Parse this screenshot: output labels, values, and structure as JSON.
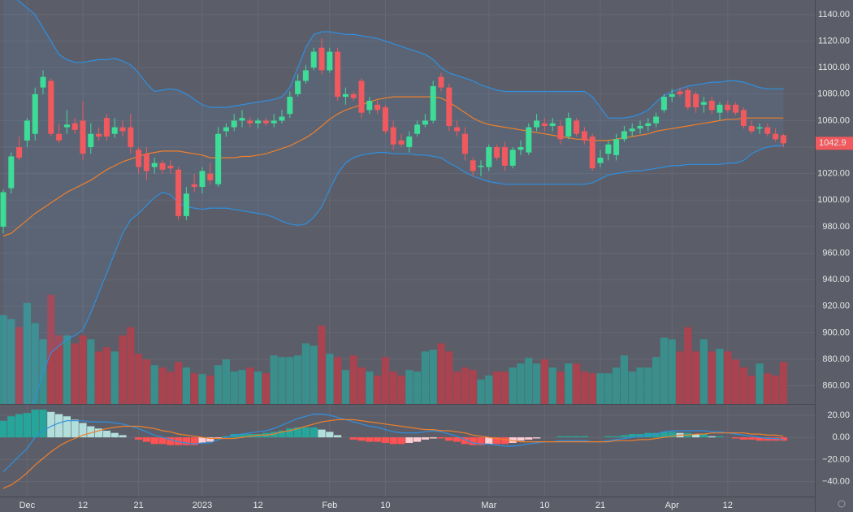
{
  "chart_data": {
    "type": "candlestick",
    "categories": [
      null,
      null,
      null,
      "Dec",
      null,
      null,
      null,
      null,
      null,
      null,
      "12",
      null,
      null,
      null,
      null,
      null,
      null,
      "21",
      null,
      null,
      null,
      null,
      null,
      null,
      null,
      "2023",
      null,
      null,
      null,
      null,
      null,
      null,
      "12",
      null,
      null,
      null,
      null,
      null,
      null,
      null,
      null,
      "Feb",
      null,
      null,
      null,
      null,
      null,
      null,
      "10",
      null,
      null,
      null,
      null,
      null,
      null,
      null,
      null,
      null,
      null,
      null,
      null,
      "Mar",
      null,
      null,
      null,
      null,
      null,
      null,
      "10",
      null,
      null,
      null,
      null,
      null,
      null,
      "21",
      null,
      null,
      null,
      null,
      null,
      null,
      null,
      null,
      "Apr",
      null,
      null,
      null,
      null,
      null,
      null,
      "12",
      null,
      null,
      null,
      null,
      null,
      null,
      null
    ],
    "open": [
      980,
      1009,
      1040,
      1045,
      1050,
      1085,
      1090,
      1050,
      1055,
      1058,
      1060,
      1040,
      1050,
      1062,
      1050,
      1055,
      1055,
      1038,
      1035,
      1025,
      1028,
      1026,
      1023,
      988,
      1012,
      1010,
      1020,
      1012,
      1052,
      1055,
      1060,
      1060,
      1058,
      1060,
      1058,
      1060,
      1065,
      1080,
      1090,
      1100,
      1115,
      1098,
      1112,
      1078,
      1080,
      1090,
      1068,
      1072,
      1070,
      1055,
      1045,
      1040,
      1050,
      1057,
      1060,
      1093,
      1085,
      1055,
      1050,
      1030,
      1025,
      1025,
      1040,
      1040,
      1026,
      1038,
      1036,
      1055,
      1058,
      1056,
      1056,
      1048,
      1060,
      1052,
      1048,
      1028,
      1035,
      1034,
      1046,
      1052,
      1054,
      1056,
      1058,
      1068,
      1078,
      1082,
      1083,
      1080,
      1072,
      1075,
      1066,
      1072,
      1072,
      1068,
      1056,
      1054,
      1055,
      1050,
      1049
    ],
    "high": [
      1008,
      1036,
      1048,
      1062,
      1085,
      1098,
      1092,
      1058,
      1068,
      1062,
      1075,
      1058,
      1055,
      1065,
      1062,
      1060,
      1065,
      1040,
      1040,
      1032,
      1030,
      1030,
      1025,
      1010,
      1020,
      1025,
      1028,
      1055,
      1058,
      1065,
      1068,
      1063,
      1062,
      1062,
      1065,
      1068,
      1082,
      1095,
      1102,
      1115,
      1122,
      1115,
      1115,
      1085,
      1082,
      1092,
      1078,
      1075,
      1072,
      1060,
      1050,
      1052,
      1060,
      1065,
      1090,
      1096,
      1088,
      1060,
      1055,
      1032,
      1030,
      1042,
      1042,
      1044,
      1040,
      1045,
      1058,
      1065,
      1062,
      1062,
      1060,
      1066,
      1062,
      1055,
      1050,
      1038,
      1045,
      1050,
      1056,
      1058,
      1060,
      1062,
      1066,
      1080,
      1084,
      1085,
      1085,
      1082,
      1078,
      1078,
      1074,
      1075,
      1074,
      1070,
      1060,
      1058,
      1058,
      1054,
      1050
    ],
    "low": [
      975,
      1005,
      1030,
      1040,
      1045,
      1080,
      1048,
      1043,
      1050,
      1050,
      1030,
      1035,
      1045,
      1045,
      1047,
      1048,
      1035,
      1020,
      1015,
      1020,
      1020,
      1020,
      985,
      985,
      1006,
      1005,
      1012,
      1010,
      1048,
      1052,
      1055,
      1055,
      1054,
      1056,
      1055,
      1058,
      1062,
      1078,
      1088,
      1098,
      1095,
      1096,
      1075,
      1072,
      1075,
      1062,
      1065,
      1065,
      1050,
      1038,
      1040,
      1036,
      1048,
      1055,
      1058,
      1082,
      1052,
      1048,
      1030,
      1018,
      1018,
      1022,
      1030,
      1022,
      1024,
      1034,
      1034,
      1052,
      1052,
      1052,
      1042,
      1046,
      1048,
      1042,
      1022,
      1025,
      1030,
      1030,
      1044,
      1048,
      1050,
      1052,
      1055,
      1066,
      1074,
      1078,
      1068,
      1066,
      1066,
      1065,
      1060,
      1066,
      1064,
      1054,
      1050,
      1050,
      1048,
      1044,
      1040
    ],
    "close": [
      1006,
      1033,
      1032,
      1060,
      1080,
      1093,
      1050,
      1045,
      1057,
      1053,
      1035,
      1050,
      1048,
      1048,
      1055,
      1052,
      1040,
      1025,
      1022,
      1028,
      1023,
      1024,
      988,
      1005,
      1010,
      1022,
      1015,
      1050,
      1055,
      1060,
      1062,
      1058,
      1060,
      1058,
      1060,
      1063,
      1078,
      1090,
      1098,
      1112,
      1098,
      1112,
      1078,
      1080,
      1077,
      1066,
      1075,
      1068,
      1052,
      1042,
      1042,
      1048,
      1057,
      1060,
      1086,
      1085,
      1056,
      1052,
      1035,
      1022,
      1026,
      1040,
      1032,
      1026,
      1038,
      1040,
      1055,
      1060,
      1056,
      1058,
      1046,
      1062,
      1050,
      1045,
      1024,
      1032,
      1042,
      1046,
      1052,
      1054,
      1056,
      1058,
      1063,
      1078,
      1080,
      1080,
      1070,
      1070,
      1074,
      1068,
      1072,
      1068,
      1066,
      1056,
      1052,
      1055,
      1050,
      1046,
      1042.9
    ],
    "up_color": "#3ddc97",
    "down_color": "#f0595d",
    "ylim": [
      846.3,
      1151
    ],
    "yticks": [
      {
        "value": 860,
        "label": "860.00"
      },
      {
        "value": 880,
        "label": "880.00"
      },
      {
        "value": 900,
        "label": "900.00"
      },
      {
        "value": 920,
        "label": "920.00"
      },
      {
        "value": 940,
        "label": "940.00"
      },
      {
        "value": 960,
        "label": "960.00"
      },
      {
        "value": 980,
        "label": "980.00"
      },
      {
        "value": 1000,
        "label": "1000.00"
      },
      {
        "value": 1020,
        "label": "1020.00"
      },
      {
        "value": 1040,
        "label": "1040.00"
      },
      {
        "value": 1060,
        "label": "1060.00"
      },
      {
        "value": 1080,
        "label": "1080.00"
      },
      {
        "value": 1100,
        "label": "1100.00"
      },
      {
        "value": 1120,
        "label": "1120.00"
      },
      {
        "value": 1140,
        "label": "1140.00"
      }
    ],
    "grid": true,
    "bollinger": {
      "fill": "rgba(100,160,230,0.10)",
      "upper": {
        "color": "#2f8fe0",
        "values": [
          1160,
          1155,
          1150,
          1145,
          1140,
          1130,
          1120,
          1110,
          1106,
          1104,
          1104,
          1105,
          1106,
          1106,
          1107,
          1105,
          1102,
          1096,
          1088,
          1082,
          1083,
          1084,
          1083,
          1080,
          1076,
          1072,
          1070,
          1070,
          1070,
          1071,
          1072,
          1073,
          1074,
          1075,
          1076,
          1078,
          1085,
          1100,
          1115,
          1125,
          1127,
          1127,
          1126,
          1125,
          1125,
          1124,
          1123,
          1122,
          1120,
          1118,
          1116,
          1114,
          1112,
          1110,
          1106,
          1100,
          1096,
          1094,
          1092,
          1090,
          1087,
          1085,
          1083,
          1082,
          1082,
          1082,
          1082,
          1082,
          1082,
          1082,
          1082,
          1082,
          1082,
          1082,
          1078,
          1070,
          1062,
          1062,
          1062,
          1063,
          1065,
          1068,
          1074,
          1079,
          1082,
          1084,
          1086,
          1087,
          1088,
          1089,
          1089,
          1090,
          1090,
          1089,
          1087,
          1085,
          1084,
          1084,
          1084
        ]
      },
      "middle": {
        "color": "#f07f2a",
        "values": [
          973,
          975,
          980,
          985,
          990,
          994,
          998,
          1002,
          1006,
          1009,
          1012,
          1015,
          1019,
          1023,
          1026,
          1029,
          1031,
          1033,
          1035,
          1036,
          1037,
          1037,
          1037,
          1036,
          1035,
          1034,
          1032,
          1032,
          1032,
          1032,
          1033,
          1033,
          1034,
          1035,
          1037,
          1039,
          1041,
          1044,
          1047,
          1051,
          1056,
          1061,
          1065,
          1068,
          1070,
          1072,
          1074,
          1076,
          1077,
          1078,
          1078,
          1078,
          1078,
          1078,
          1078,
          1077,
          1074,
          1070,
          1066,
          1062,
          1059,
          1057,
          1056,
          1055,
          1054,
          1053,
          1052,
          1051,
          1050,
          1049,
          1048,
          1047,
          1046,
          1046,
          1045,
          1045,
          1045,
          1046,
          1047,
          1048,
          1049,
          1050,
          1052,
          1053,
          1054,
          1055,
          1056,
          1057,
          1058,
          1059,
          1060,
          1061,
          1061,
          1062,
          1062,
          1062,
          1062,
          1062,
          1062
        ]
      },
      "lower": {
        "color": "#2f8fe0",
        "values": [
          786,
          795,
          810,
          830,
          850,
          870,
          885,
          890,
          895,
          898,
          902,
          915,
          930,
          945,
          960,
          975,
          985,
          990,
          996,
          1002,
          1006,
          1004,
          998,
          995,
          994,
          993,
          994,
          994,
          994,
          993,
          992,
          991,
          990,
          989,
          987,
          984,
          982,
          981,
          982,
          987,
          995,
          1008,
          1020,
          1028,
          1032,
          1034,
          1035,
          1036,
          1036,
          1035,
          1035,
          1035,
          1034,
          1034,
          1033,
          1032,
          1028,
          1025,
          1021,
          1018,
          1016,
          1014,
          1013,
          1012,
          1012,
          1012,
          1012,
          1012,
          1012,
          1012,
          1012,
          1012,
          1012,
          1012,
          1013,
          1016,
          1019,
          1020,
          1021,
          1022,
          1022,
          1023,
          1024,
          1025,
          1026,
          1026,
          1027,
          1027,
          1027,
          1027,
          1027,
          1028,
          1028,
          1030,
          1035,
          1038,
          1040,
          1041,
          1041
        ]
      }
    },
    "volume": {
      "ylim": [
        0,
        500
      ],
      "up_color": "#3a8f8c",
      "down_color": "#a8434f",
      "values": [
        110,
        105,
        95,
        125,
        100,
        80,
        135,
        85,
        85,
        75,
        85,
        80,
        65,
        70,
        65,
        85,
        95,
        62,
        55,
        48,
        45,
        40,
        52,
        45,
        38,
        37,
        35,
        48,
        55,
        40,
        42,
        45,
        40,
        38,
        60,
        58,
        58,
        60,
        75,
        72,
        97,
        62,
        58,
        42,
        60,
        45,
        40,
        35,
        58,
        40,
        35,
        42,
        40,
        65,
        67,
        75,
        65,
        40,
        45,
        42,
        30,
        35,
        40,
        40,
        45,
        50,
        57,
        50,
        55,
        45,
        40,
        50,
        50,
        40,
        38,
        38,
        38,
        45,
        60,
        40,
        45,
        45,
        58,
        82,
        80,
        65,
        95,
        65,
        80,
        65,
        68,
        65,
        55,
        45,
        35,
        50,
        38,
        35,
        52
      ]
    },
    "macd": {
      "ylim": [
        -52,
        28
      ],
      "yticks": [
        {
          "value": 20,
          "label": "20.00"
        },
        {
          "value": 0,
          "label": "0.00"
        },
        {
          "value": -20,
          "label": "−20.00"
        },
        {
          "value": -40,
          "label": "−40.00"
        }
      ],
      "macd_line": {
        "color": "#2f8fe0",
        "values": [
          -31,
          -24,
          -17,
          -10,
          0,
          6,
          10,
          13,
          15,
          15,
          15,
          14,
          14,
          14,
          13,
          12,
          10,
          8,
          5,
          2,
          0,
          -2,
          -4,
          -5,
          -6,
          -5,
          -5,
          -2,
          0,
          2,
          3,
          4,
          5,
          6,
          8,
          11,
          14,
          17,
          19,
          21,
          21,
          20,
          18,
          16,
          14,
          12,
          10,
          9,
          7,
          5,
          4,
          4,
          4,
          5,
          6,
          5,
          3,
          1,
          -2,
          -5,
          -6,
          -6,
          -7,
          -8,
          -8,
          -7,
          -6,
          -5,
          -4,
          -4,
          -3,
          -3,
          -3,
          -3,
          -4,
          -4,
          -3,
          -2,
          -1,
          0,
          1,
          2,
          3,
          5,
          6,
          6,
          6,
          6,
          6,
          5,
          5,
          4,
          3,
          2,
          1,
          0,
          -1,
          -1,
          -2
        ]
      },
      "signal_line": {
        "color": "#f07f2a",
        "values": [
          -46,
          -43,
          -38,
          -32,
          -25,
          -19,
          -13,
          -8,
          -4,
          -1,
          2,
          4,
          6,
          8,
          9,
          10,
          10,
          10,
          9,
          8,
          6,
          5,
          3,
          2,
          1,
          0,
          -1,
          -1,
          -1,
          -1,
          0,
          1,
          2,
          2,
          3,
          5,
          6,
          8,
          10,
          12,
          14,
          15,
          16,
          16,
          16,
          15,
          14,
          13,
          12,
          11,
          10,
          9,
          8,
          7,
          7,
          6,
          6,
          5,
          4,
          2,
          1,
          0,
          -1,
          -2,
          -3,
          -4,
          -4,
          -4,
          -4,
          -4,
          -4,
          -4,
          -4,
          -4,
          -4,
          -4,
          -4,
          -3,
          -3,
          -3,
          -2,
          -2,
          -1,
          0,
          1,
          2,
          2,
          3,
          3,
          4,
          4,
          4,
          4,
          4,
          3,
          3,
          2,
          2,
          1
        ]
      },
      "histogram": {
        "colors": [
          "#26a69a",
          "#b2dfdb",
          "#ff5252",
          "#ffcdd2"
        ],
        "values": [
          15,
          19,
          21,
          22,
          25,
          25,
          23,
          21,
          19,
          16,
          13,
          10,
          8,
          6,
          4,
          2,
          0,
          -2,
          -4,
          -6,
          -6,
          -7,
          -7,
          -7,
          -7,
          -5,
          -4,
          -1,
          1,
          3,
          3,
          3,
          3,
          4,
          5,
          6,
          8,
          9,
          9,
          9,
          7,
          5,
          2,
          0,
          -2,
          -3,
          -4,
          -4,
          -5,
          -6,
          -6,
          -5,
          -4,
          -2,
          -1,
          -1,
          -3,
          -4,
          -6,
          -7,
          -7,
          -6,
          -6,
          -6,
          -5,
          -3,
          -2,
          -1,
          0,
          0,
          1,
          1,
          1,
          1,
          0,
          0,
          1,
          1,
          2,
          3,
          3,
          4,
          4,
          5,
          5,
          4,
          4,
          3,
          3,
          1,
          1,
          0,
          -1,
          -2,
          -2,
          -3,
          -3,
          -3,
          -3
        ]
      }
    }
  }
}
